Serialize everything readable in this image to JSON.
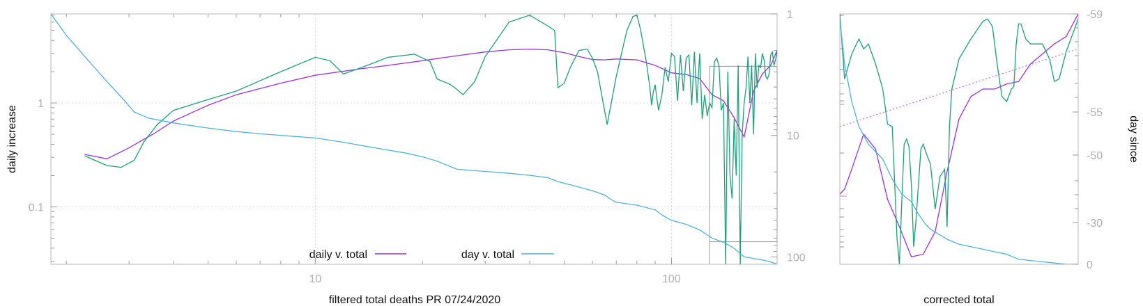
{
  "chart_data": [
    {
      "type": "line",
      "xlabel": "filtered total deaths PR 07/24/2020",
      "ylabel": "daily increase",
      "ylabel_right": "",
      "x_scale": "log",
      "y_scale": "log",
      "y2_scale": "log-reversed",
      "xlim": [
        1.81,
        198
      ],
      "ylim": [
        0.028,
        7.2
      ],
      "y2lim": [
        1,
        115
      ],
      "x_ticks": [
        10,
        100
      ],
      "y_ticks": [
        0.1,
        1
      ],
      "y2_ticks": [
        1,
        10,
        100
      ],
      "grid": true,
      "legend_position": "bottom-center",
      "legend": [
        {
          "label": "daily v. total",
          "color": "#9b30e0"
        },
        {
          "label": "day v. total",
          "color": "#4cb2e0"
        }
      ],
      "series": [
        {
          "name": "daily v. total",
          "color": "#9b30e0",
          "axis": "left",
          "x": [
            2.25,
            2.6,
            3,
            3.5,
            4,
            5,
            6,
            8,
            10,
            13,
            16,
            20,
            25,
            30,
            35,
            40,
            45,
            50,
            55,
            60,
            65,
            70,
            80,
            90,
            100,
            110,
            120,
            130,
            140,
            150,
            160,
            170,
            180,
            190,
            198
          ],
          "y": [
            0.32,
            0.29,
            0.37,
            0.5,
            0.67,
            0.95,
            1.2,
            1.55,
            1.85,
            2.1,
            2.3,
            2.55,
            2.85,
            3.1,
            3.25,
            3.3,
            3.25,
            3.05,
            2.8,
            2.62,
            2.6,
            2.65,
            2.6,
            2.3,
            1.95,
            1.88,
            1.72,
            1.2,
            1.05,
            0.72,
            0.47,
            1.3,
            1.9,
            2.3,
            3.2
          ]
        },
        {
          "name": "",
          "color": "#1aa07a",
          "axis": "left",
          "x": [
            2.25,
            2.6,
            2.85,
            3.1,
            3.3,
            3.6,
            4,
            5,
            6,
            8,
            10,
            11,
            12,
            14,
            16,
            19,
            21,
            22,
            24,
            25,
            26,
            28,
            30,
            35,
            40,
            45,
            47,
            48,
            50,
            52,
            55,
            58,
            60,
            62,
            64,
            66,
            70,
            75,
            78,
            80,
            82,
            85,
            87,
            88,
            89,
            90,
            91,
            92,
            94,
            96,
            98,
            100,
            102,
            104,
            106,
            108,
            110,
            112,
            114,
            116,
            118,
            120,
            122,
            124,
            126,
            128,
            130,
            132,
            134,
            136,
            138,
            140,
            142,
            144,
            146,
            148,
            150,
            152,
            154,
            156,
            158,
            160,
            162,
            164,
            166,
            168,
            170,
            172,
            174,
            176,
            178,
            180,
            182,
            184,
            186,
            188,
            190,
            192,
            194,
            196,
            198
          ],
          "y": [
            0.31,
            0.25,
            0.24,
            0.28,
            0.42,
            0.62,
            0.85,
            1.08,
            1.3,
            2.0,
            2.75,
            2.55,
            1.9,
            2.3,
            2.75,
            2.95,
            2.5,
            1.7,
            1.5,
            1.35,
            1.2,
            1.6,
            2.8,
            6.0,
            7.0,
            5.5,
            5.0,
            1.4,
            1.55,
            2.2,
            3.2,
            3.3,
            2.7,
            2.0,
            1.1,
            0.62,
            1.8,
            5.0,
            6.8,
            7.0,
            5.0,
            2.5,
            1.4,
            0.95,
            1.3,
            1.5,
            1.1,
            0.85,
            1.2,
            2.2,
            1.6,
            3.0,
            2.8,
            1.05,
            2.9,
            1.3,
            2.7,
            2.9,
            0.95,
            3.1,
            1.0,
            3.0,
            0.7,
            1.2,
            0.75,
            1.0,
            0.9,
            2.5,
            2.7,
            2.3,
            0.85,
            1.0,
            0.028,
            2.0,
            0.2,
            0.12,
            0.7,
            0.2,
            2.3,
            0.028,
            0.5,
            1.0,
            1.4,
            2.8,
            1.0,
            2.3,
            0.5,
            3.0,
            1.4,
            2.3,
            2.2,
            3.0,
            2.6,
            1.8,
            1.7,
            1.9,
            2.9,
            3.1,
            2.3,
            2.6,
            3.1
          ]
        },
        {
          "name": "day v. total",
          "color": "#4cb2e0",
          "axis": "right",
          "x": [
            1.81,
            2.0,
            2.3,
            2.6,
            2.9,
            3.1,
            3.4,
            4,
            5,
            6,
            7,
            8,
            10,
            12,
            15,
            18,
            20,
            22,
            25,
            30,
            35,
            40,
            45,
            48,
            52,
            60,
            65,
            68,
            70,
            80,
            90,
            95,
            100,
            110,
            120,
            130,
            140,
            145,
            150,
            160,
            170,
            180,
            190,
            198
          ],
          "y": [
            1.0,
            1.5,
            2.4,
            3.6,
            5.1,
            6.4,
            7.2,
            7.9,
            8.7,
            9.3,
            9.7,
            10.0,
            10.5,
            11.4,
            12.8,
            14.0,
            15.0,
            16.3,
            19.0,
            19.8,
            20.5,
            21.3,
            22.3,
            24.0,
            25.5,
            28.5,
            31.0,
            34.0,
            35.5,
            37.5,
            41.0,
            46.0,
            50.0,
            54.0,
            60.0,
            70.0,
            76.0,
            80.0,
            85.0,
            100.0,
            103.0,
            106.0,
            110.0,
            115.0
          ]
        }
      ]
    },
    {
      "type": "line",
      "xlabel": "corrected total",
      "ylabel": "",
      "ylabel_right": "day since",
      "y_scale": "log",
      "y_right_ticks": [
        "-59",
        "-55",
        "-50",
        "-30",
        "0"
      ],
      "grid": false,
      "series": [
        {
          "name": "",
          "color": "#9b30e0",
          "axis": "left",
          "x": [
            0,
            0.02,
            0.05,
            0.1,
            0.15,
            0.2,
            0.25,
            0.3,
            0.35,
            0.4,
            0.45,
            0.5,
            0.55,
            0.6,
            0.65,
            0.7,
            0.75,
            0.8,
            0.85,
            0.9,
            0.95,
            1.0
          ],
          "y": [
            0.72,
            0.7,
            0.62,
            0.48,
            0.54,
            0.74,
            0.85,
            0.97,
            0.96,
            0.87,
            0.63,
            0.42,
            0.33,
            0.3,
            0.3,
            0.28,
            0.27,
            0.2,
            0.16,
            0.12,
            0.09,
            0.0
          ]
        },
        {
          "name": "",
          "color": "#1aa07a",
          "axis": "left",
          "x": [
            0,
            0.02,
            0.05,
            0.08,
            0.1,
            0.12,
            0.15,
            0.18,
            0.2,
            0.22,
            0.24,
            0.25,
            0.26,
            0.27,
            0.28,
            0.29,
            0.3,
            0.31,
            0.32,
            0.34,
            0.35,
            0.36,
            0.38,
            0.4,
            0.42,
            0.44,
            0.45,
            0.46,
            0.47,
            0.5,
            0.55,
            0.6,
            0.62,
            0.64,
            0.66,
            0.68,
            0.7,
            0.72,
            0.73,
            0.74,
            0.75,
            0.76,
            0.78,
            0.8,
            0.82,
            0.85,
            0.88,
            0.9,
            0.92,
            0.95,
            1.0
          ],
          "y": [
            0.0,
            0.26,
            0.16,
            0.1,
            0.14,
            0.12,
            0.2,
            0.3,
            0.44,
            0.45,
            0.9,
            1.0,
            0.75,
            0.52,
            0.5,
            0.53,
            0.68,
            0.93,
            0.82,
            0.54,
            0.52,
            0.55,
            0.6,
            0.78,
            0.65,
            0.62,
            0.85,
            0.45,
            0.3,
            0.18,
            0.1,
            0.03,
            0.02,
            0.05,
            0.2,
            0.33,
            0.35,
            0.3,
            0.29,
            0.12,
            0.04,
            0.04,
            0.1,
            0.12,
            0.12,
            0.12,
            0.18,
            0.27,
            0.26,
            0.15,
            0.02
          ]
        },
        {
          "name": "",
          "color": "#4cb2e0",
          "axis": "right",
          "x": [
            0,
            0.02,
            0.05,
            0.08,
            0.12,
            0.18,
            0.22,
            0.26,
            0.3,
            0.33,
            0.36,
            0.38,
            0.45,
            0.5,
            0.55,
            0.6,
            0.65,
            0.7,
            0.75,
            0.8,
            0.85,
            0.9,
            0.95,
            1.0
          ],
          "y": [
            0.02,
            0.2,
            0.35,
            0.45,
            0.52,
            0.58,
            0.66,
            0.72,
            0.75,
            0.8,
            0.84,
            0.86,
            0.9,
            0.92,
            0.93,
            0.94,
            0.95,
            0.96,
            0.98,
            0.985,
            0.99,
            0.995,
            1.0,
            1.0
          ]
        },
        {
          "name": "",
          "color": "#c070e8",
          "style": "dotted",
          "axis": "left",
          "x": [
            0,
            1
          ],
          "y": [
            0.45,
            0.14
          ]
        }
      ]
    }
  ]
}
